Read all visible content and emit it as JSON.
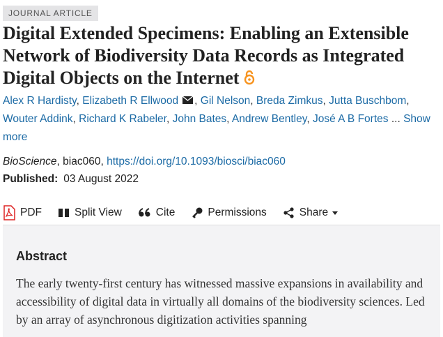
{
  "label": "JOURNAL ARTICLE",
  "title": "Digital Extended Specimens: Enabling an Extensible Network of Biodiversity Data Records as Integrated Digital Objects on the Internet",
  "authors": [
    "Alex R Hardisty",
    "Elizabeth R Ellwood",
    "Gil Nelson",
    "Breda Zimkus",
    "Jutta Buschbom",
    "Wouter Addink",
    "Richard K Rabeler",
    "John Bates",
    "Andrew Bentley",
    "José A B Fortes"
  ],
  "separator": ", ",
  "ellipsis": "...",
  "show_more": "Show more",
  "citation": {
    "journal": "BioScience",
    "article_id": "biac060",
    "doi": "https://doi.org/10.1093/biosci/biac060"
  },
  "published": {
    "label": "Published:",
    "date": "03 August 2022"
  },
  "toolbar": [
    "PDF",
    "Split View",
    "Cite",
    "Permissions",
    "Share"
  ],
  "abstract": {
    "heading": "Abstract",
    "text": "The early twenty-first century has witnessed massive expansions in availability and accessibility of digital data in virtually all domains of the biodiversity sciences. Led by an array of asynchronous digitization activities spanning"
  }
}
